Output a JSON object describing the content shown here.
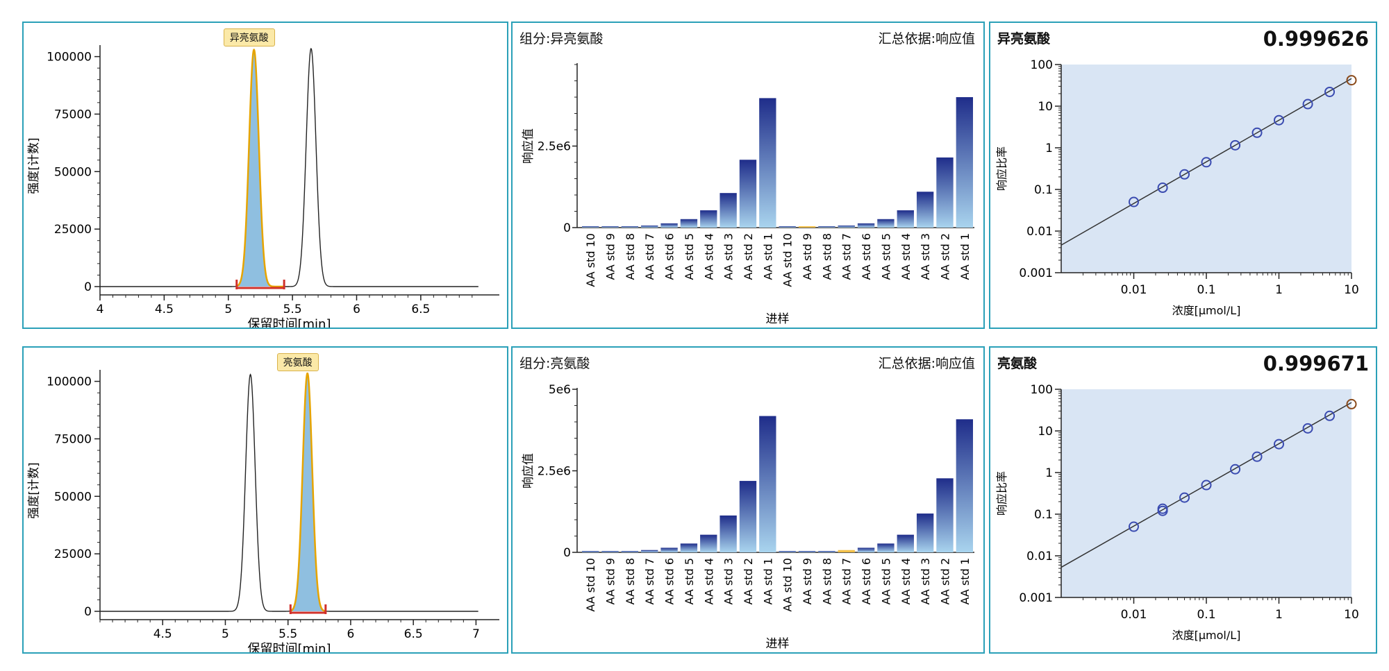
{
  "colors": {
    "border": "#2aa0b8",
    "peak_fill": "#8fbfe0",
    "peak_outline": "#e6a400",
    "baseline_marker": "#d0302a",
    "bar_dark": "#1f2d8a",
    "bar_light": "#a9d4ee",
    "highlight_bar": "#f2c04a",
    "cal_bg": "#d9e5f4",
    "cal_point": "#3a4bb0",
    "cal_point_last": "#8a4a1a"
  },
  "rows": [
    {
      "chromatogram": {
        "peak_label": "异亮氨酸",
        "ylabel": "强度[计数]",
        "xlabel": "保留时间[min]",
        "chart_data": {
          "type": "line",
          "xlim": [
            4.0,
            6.95
          ],
          "ylim": [
            0,
            105000
          ],
          "x_ticks": [
            4,
            4.5,
            5,
            5.5,
            6,
            6.5
          ],
          "x_tick_labels": [
            "4",
            "4.5",
            "5",
            "5.5",
            "6",
            "6.5"
          ],
          "y_ticks": [
            0,
            25000,
            50000,
            75000,
            100000
          ],
          "y_tick_labels": [
            "0",
            "25000",
            "50000",
            "75000",
            "100000"
          ],
          "peaks": [
            {
              "rt": 5.2,
              "height": 103000,
              "width": 0.038
            },
            {
              "rt": 5.645,
              "height": 103500,
              "width": 0.038
            }
          ],
          "integrated_peak": {
            "rt": 5.2,
            "start": 5.065,
            "end": 5.435
          }
        }
      },
      "bars": {
        "component_label": "组分:异亮氨酸",
        "summary_label": "汇总依据:响应值",
        "ylabel": "响应值",
        "xlabel": "进样",
        "chart_data": {
          "type": "bar",
          "categories": [
            "AA std 10",
            "AA std 9",
            "AA std 8",
            "AA std 7",
            "AA std 6",
            "AA std 5",
            "AA std 4",
            "AA std 3",
            "AA std 2",
            "AA std 1",
            "AA std 10",
            "AA std 9",
            "AA std 8",
            "AA std 7",
            "AA std 6",
            "AA std 5",
            "AA std 4",
            "AA std 3",
            "AA std 2",
            "AA std 1"
          ],
          "values": [
            8000,
            16000,
            32000,
            64000,
            130000,
            260000,
            530000,
            1060000,
            2080000,
            3970000,
            8000,
            16000,
            32000,
            64000,
            130000,
            260000,
            530000,
            1100000,
            2150000,
            4000000
          ],
          "highlight_index": 11,
          "ylim": [
            0,
            5000000
          ],
          "y_ticks": [
            0,
            2500000
          ],
          "y_tick_labels": [
            "0",
            "2.5e6"
          ]
        }
      },
      "calibration": {
        "component": "异亮氨酸",
        "r_squared": "0.999626",
        "ylabel": "响应比率",
        "xlabel": "浓度[μmol/L]",
        "chart_data": {
          "type": "scatter",
          "x_scale": "log",
          "y_scale": "log",
          "xlim": [
            0.001,
            10
          ],
          "ylim": [
            0.001,
            100
          ],
          "x_tick_labels": [
            "0.01",
            "0.1",
            "1",
            "10"
          ],
          "y_tick_labels": [
            "0.001",
            "0.01",
            "0.1",
            "1",
            "10",
            "100"
          ],
          "points": [
            [
              0.01,
              0.05
            ],
            [
              0.025,
              0.11
            ],
            [
              0.05,
              0.23
            ],
            [
              0.1,
              0.45
            ],
            [
              0.25,
              1.15
            ],
            [
              0.5,
              2.3
            ],
            [
              1,
              4.6
            ],
            [
              2.5,
              11.2
            ],
            [
              5,
              22
            ],
            [
              10,
              42
            ]
          ],
          "fit_line": [
            [
              0.001,
              0.0046
            ],
            [
              10,
              46
            ]
          ]
        }
      }
    },
    {
      "chromatogram": {
        "peak_label": "亮氨酸",
        "ylabel": "强度[计数]",
        "xlabel": "保留时间[min]",
        "chart_data": {
          "type": "line",
          "xlim": [
            4.0,
            7.02
          ],
          "ylim": [
            0,
            105000
          ],
          "x_ticks": [
            4.5,
            5,
            5.5,
            6,
            6.5,
            7
          ],
          "x_tick_labels": [
            "4.5",
            "5",
            "5.5",
            "6",
            "6.5",
            "7"
          ],
          "y_ticks": [
            0,
            25000,
            50000,
            75000,
            100000
          ],
          "y_tick_labels": [
            "0",
            "25000",
            "50000",
            "75000",
            "100000"
          ],
          "peaks": [
            {
              "rt": 5.2,
              "height": 103000,
              "width": 0.038
            },
            {
              "rt": 5.655,
              "height": 103500,
              "width": 0.038
            }
          ],
          "integrated_peak": {
            "rt": 5.655,
            "start": 5.52,
            "end": 5.8
          }
        }
      },
      "bars": {
        "component_label": "组分:亮氨酸",
        "summary_label": "汇总依据:响应值",
        "ylabel": "响应值",
        "xlabel": "进样",
        "chart_data": {
          "type": "bar",
          "categories": [
            "AA std 10",
            "AA std 9",
            "AA std 8",
            "AA std 7",
            "AA std 6",
            "AA std 5",
            "AA std 4",
            "AA std 3",
            "AA std 2",
            "AA std 1",
            "AA std 10",
            "AA std 9",
            "AA std 8",
            "AA std 7",
            "AA std 6",
            "AA std 5",
            "AA std 4",
            "AA std 3",
            "AA std 2",
            "AA std 1"
          ],
          "values": [
            9000,
            18000,
            36000,
            70000,
            140000,
            270000,
            540000,
            1130000,
            2190000,
            4180000,
            9000,
            18000,
            36000,
            70000,
            140000,
            270000,
            540000,
            1190000,
            2270000,
            4080000
          ],
          "highlight_index": 13,
          "ylim": [
            0,
            5000000
          ],
          "y_ticks": [
            0,
            2500000,
            5000000
          ],
          "y_tick_labels": [
            "0",
            "2.5e6",
            "5e6"
          ]
        }
      },
      "calibration": {
        "component": "亮氨酸",
        "r_squared": "0.999671",
        "ylabel": "响应比率",
        "xlabel": "浓度[μmol/L]",
        "chart_data": {
          "type": "scatter",
          "x_scale": "log",
          "y_scale": "log",
          "xlim": [
            0.001,
            10
          ],
          "ylim": [
            0.001,
            100
          ],
          "x_tick_labels": [
            "0.01",
            "0.1",
            "1",
            "10"
          ],
          "y_tick_labels": [
            "0.001",
            "0.01",
            "0.1",
            "1",
            "10",
            "100"
          ],
          "points": [
            [
              0.01,
              0.05
            ],
            [
              0.025,
              0.12
            ],
            [
              0.025,
              0.135
            ],
            [
              0.05,
              0.25
            ],
            [
              0.1,
              0.5
            ],
            [
              0.25,
              1.2
            ],
            [
              0.5,
              2.4
            ],
            [
              1,
              4.8
            ],
            [
              2.5,
              11.5
            ],
            [
              5,
              23
            ],
            [
              10,
              44
            ]
          ],
          "fit_line": [
            [
              0.001,
              0.0053
            ],
            [
              10,
              48
            ]
          ]
        }
      }
    }
  ]
}
